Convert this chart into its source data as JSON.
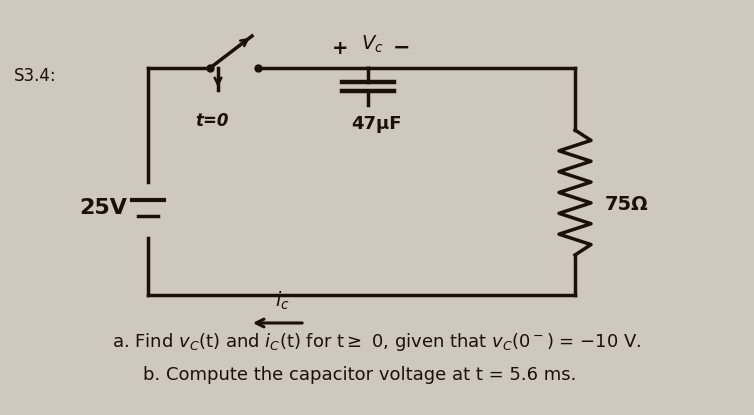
{
  "bg_color": "#cfc8be",
  "label_s3": "S3.4:",
  "voltage_label": "25V",
  "switch_label": "t=0",
  "cap_label": "47μF",
  "vc_plus": "+",
  "vc_label": "V_c",
  "vc_minus": "-",
  "res_label": "75Ω",
  "ic_label": "i_c",
  "text_a": "a. Find v_C(t) and i_C(t) for t≥ 0, given that v_C(0⁻) = −10 V.",
  "text_b": "b. Compute the capacitor voltage at t = 5.6 ms.",
  "circuit_color": "#1a1208",
  "text_color": "#1a1208"
}
